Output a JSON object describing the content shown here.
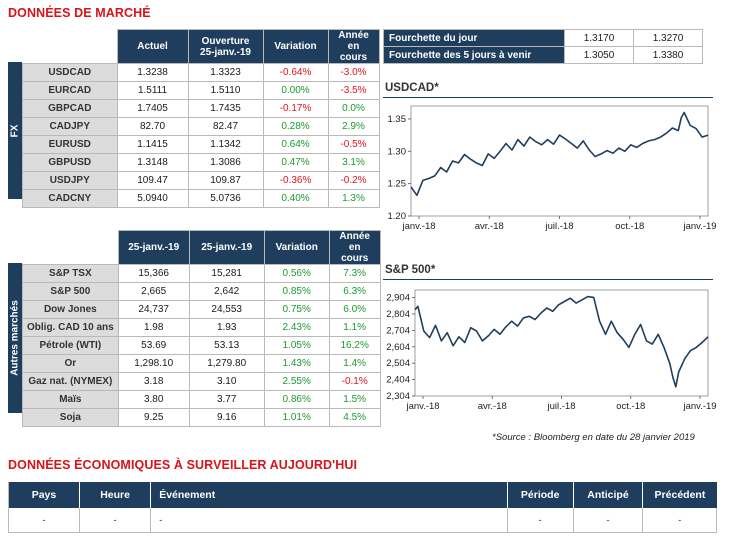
{
  "market_title": "DONNÉES DE MARCHÉ",
  "fx": {
    "band_label": "FX",
    "headers": [
      "Actuel",
      "Ouverture\n25-janv.-19",
      "Variation",
      "Année en\ncours"
    ],
    "rows": [
      {
        "name": "USDCAD",
        "actuel": "1.3238",
        "ouverture": "1.3323",
        "variation": "-0.64%",
        "annee": "-3.0%",
        "var_sign": "neg",
        "ytd_sign": "neg"
      },
      {
        "name": "EURCAD",
        "actuel": "1.5111",
        "ouverture": "1.5110",
        "variation": "0.00%",
        "annee": "-3.5%",
        "var_sign": "pos",
        "ytd_sign": "neg"
      },
      {
        "name": "GBPCAD",
        "actuel": "1.7405",
        "ouverture": "1.7435",
        "variation": "-0.17%",
        "annee": "0.0%",
        "var_sign": "neg",
        "ytd_sign": "pos"
      },
      {
        "name": "CADJPY",
        "actuel": "82.70",
        "ouverture": "82.47",
        "variation": "0.28%",
        "annee": "2.9%",
        "var_sign": "pos",
        "ytd_sign": "pos"
      },
      {
        "name": "EURUSD",
        "actuel": "1.1415",
        "ouverture": "1.1342",
        "variation": "0.64%",
        "annee": "-0.5%",
        "var_sign": "pos",
        "ytd_sign": "neg"
      },
      {
        "name": "GBPUSD",
        "actuel": "1.3148",
        "ouverture": "1.3086",
        "variation": "0.47%",
        "annee": "3.1%",
        "var_sign": "pos",
        "ytd_sign": "pos"
      },
      {
        "name": "USDJPY",
        "actuel": "109.47",
        "ouverture": "109.87",
        "variation": "-0.36%",
        "annee": "-0.2%",
        "var_sign": "neg",
        "ytd_sign": "neg"
      },
      {
        "name": "CADCNY",
        "actuel": "5.0940",
        "ouverture": "5.0736",
        "variation": "0.40%",
        "annee": "1.3%",
        "var_sign": "pos",
        "ytd_sign": "pos"
      }
    ]
  },
  "other": {
    "band_label": "Autres marchés",
    "headers": [
      "25-janv.-19",
      "25-janv.-19",
      "Variation",
      "Année en\ncours"
    ],
    "rows": [
      {
        "name": "S&P TSX",
        "actuel": "15,366",
        "ouverture": "15,281",
        "variation": "0.56%",
        "annee": "7.3%",
        "var_sign": "pos",
        "ytd_sign": "pos"
      },
      {
        "name": "S&P 500",
        "actuel": "2,665",
        "ouverture": "2,642",
        "variation": "0.85%",
        "annee": "6.3%",
        "var_sign": "pos",
        "ytd_sign": "pos"
      },
      {
        "name": "Dow Jones",
        "actuel": "24,737",
        "ouverture": "24,553",
        "variation": "0.75%",
        "annee": "6.0%",
        "var_sign": "pos",
        "ytd_sign": "pos"
      },
      {
        "name": "Oblig. CAD 10 ans",
        "actuel": "1.98",
        "ouverture": "1.93",
        "variation": "2.43%",
        "annee": "1.1%",
        "var_sign": "pos",
        "ytd_sign": "pos"
      },
      {
        "name": "Pétrole (WTI)",
        "actuel": "53.69",
        "ouverture": "53.13",
        "variation": "1.05%",
        "annee": "16.2%",
        "var_sign": "pos",
        "ytd_sign": "pos"
      },
      {
        "name": "Or",
        "actuel": "1,298.10",
        "ouverture": "1,279.80",
        "variation": "1.43%",
        "annee": "1.4%",
        "var_sign": "pos",
        "ytd_sign": "pos"
      },
      {
        "name": "Gaz nat. (NYMEX)",
        "actuel": "3.18",
        "ouverture": "3.10",
        "variation": "2.55%",
        "annee": "-0.1%",
        "var_sign": "pos",
        "ytd_sign": "neg"
      },
      {
        "name": "Maïs",
        "actuel": "3.80",
        "ouverture": "3.77",
        "variation": "0.86%",
        "annee": "1.5%",
        "var_sign": "pos",
        "ytd_sign": "pos"
      },
      {
        "name": "Soja",
        "actuel": "9.25",
        "ouverture": "9.16",
        "variation": "1.01%",
        "annee": "4.5%",
        "var_sign": "pos",
        "ytd_sign": "pos"
      }
    ]
  },
  "range": {
    "rows": [
      {
        "label": "Fourchette du jour",
        "low": "1.3170",
        "high": "1.3270"
      },
      {
        "label": "Fourchette des 5 jours à venir",
        "low": "1.3050",
        "high": "1.3380"
      }
    ]
  },
  "chart_data": [
    {
      "type": "line",
      "title": "USDCAD*",
      "x_ticks": [
        "janv.-18",
        "avr.-18",
        "juil.-18",
        "oct.-18",
        "janv.-19"
      ],
      "y_ticks": [
        "1.20",
        "1.25",
        "1.30",
        "1.35"
      ],
      "ylim": [
        1.2,
        1.37
      ],
      "x": [
        0,
        0.02,
        0.04,
        0.06,
        0.08,
        0.1,
        0.12,
        0.14,
        0.16,
        0.18,
        0.2,
        0.22,
        0.24,
        0.26,
        0.28,
        0.3,
        0.32,
        0.34,
        0.36,
        0.38,
        0.4,
        0.42,
        0.44,
        0.46,
        0.48,
        0.5,
        0.52,
        0.54,
        0.56,
        0.58,
        0.6,
        0.62,
        0.64,
        0.66,
        0.68,
        0.7,
        0.72,
        0.74,
        0.76,
        0.78,
        0.8,
        0.82,
        0.84,
        0.86,
        0.88,
        0.9,
        0.91,
        0.92,
        0.94,
        0.96,
        0.98,
        1.0
      ],
      "values": [
        1.245,
        1.232,
        1.255,
        1.258,
        1.262,
        1.275,
        1.268,
        1.285,
        1.282,
        1.295,
        1.288,
        1.282,
        1.278,
        1.296,
        1.289,
        1.3,
        1.312,
        1.302,
        1.318,
        1.308,
        1.322,
        1.315,
        1.31,
        1.318,
        1.311,
        1.325,
        1.319,
        1.312,
        1.305,
        1.316,
        1.302,
        1.292,
        1.296,
        1.301,
        1.297,
        1.305,
        1.3,
        1.31,
        1.306,
        1.312,
        1.316,
        1.318,
        1.322,
        1.328,
        1.336,
        1.332,
        1.352,
        1.36,
        1.34,
        1.335,
        1.322,
        1.325
      ]
    },
    {
      "type": "line",
      "title": "S&P 500*",
      "x_ticks": [
        "janv.-18",
        "avr.-18",
        "juil.-18",
        "oct.-18",
        "janv.-19"
      ],
      "y_ticks": [
        "2,304",
        "2,404",
        "2,504",
        "2,604",
        "2,704",
        "2,804",
        "2,904"
      ],
      "ylim": [
        2304,
        2950
      ],
      "x": [
        0,
        0.01,
        0.03,
        0.05,
        0.07,
        0.09,
        0.11,
        0.13,
        0.15,
        0.17,
        0.19,
        0.21,
        0.23,
        0.25,
        0.27,
        0.29,
        0.31,
        0.33,
        0.35,
        0.37,
        0.39,
        0.41,
        0.43,
        0.45,
        0.47,
        0.49,
        0.51,
        0.53,
        0.55,
        0.57,
        0.59,
        0.61,
        0.63,
        0.65,
        0.67,
        0.69,
        0.71,
        0.73,
        0.75,
        0.77,
        0.79,
        0.81,
        0.83,
        0.85,
        0.87,
        0.88,
        0.89,
        0.9,
        0.92,
        0.94,
        0.96,
        0.98,
        1.0
      ],
      "values": [
        2830,
        2850,
        2700,
        2660,
        2735,
        2640,
        2690,
        2610,
        2665,
        2630,
        2720,
        2700,
        2640,
        2670,
        2710,
        2680,
        2725,
        2760,
        2730,
        2780,
        2790,
        2770,
        2810,
        2840,
        2820,
        2860,
        2880,
        2900,
        2870,
        2890,
        2910,
        2905,
        2760,
        2680,
        2760,
        2690,
        2650,
        2600,
        2680,
        2740,
        2640,
        2620,
        2680,
        2600,
        2500,
        2420,
        2360,
        2450,
        2530,
        2580,
        2600,
        2630,
        2665
      ]
    }
  ],
  "source_note": "*Source : Bloomberg en date du  28 janvier 2019",
  "econ": {
    "title_left": "DONNÉES ÉCONOMIQUES À SURVEILLER",
    "title_right": "AUJOURD'HUI",
    "headers": [
      "Pays",
      "Heure",
      "Événement",
      "Période",
      "Anticipé",
      "Précédent"
    ],
    "row": [
      "-",
      "-",
      "-",
      "-",
      "-",
      "-"
    ]
  },
  "colors": {
    "navy": "#1f3e5e",
    "red": "#e2141b",
    "green": "#1c9a2f",
    "title_red": "#d7141a",
    "label_grey": "#dcdcdc"
  }
}
